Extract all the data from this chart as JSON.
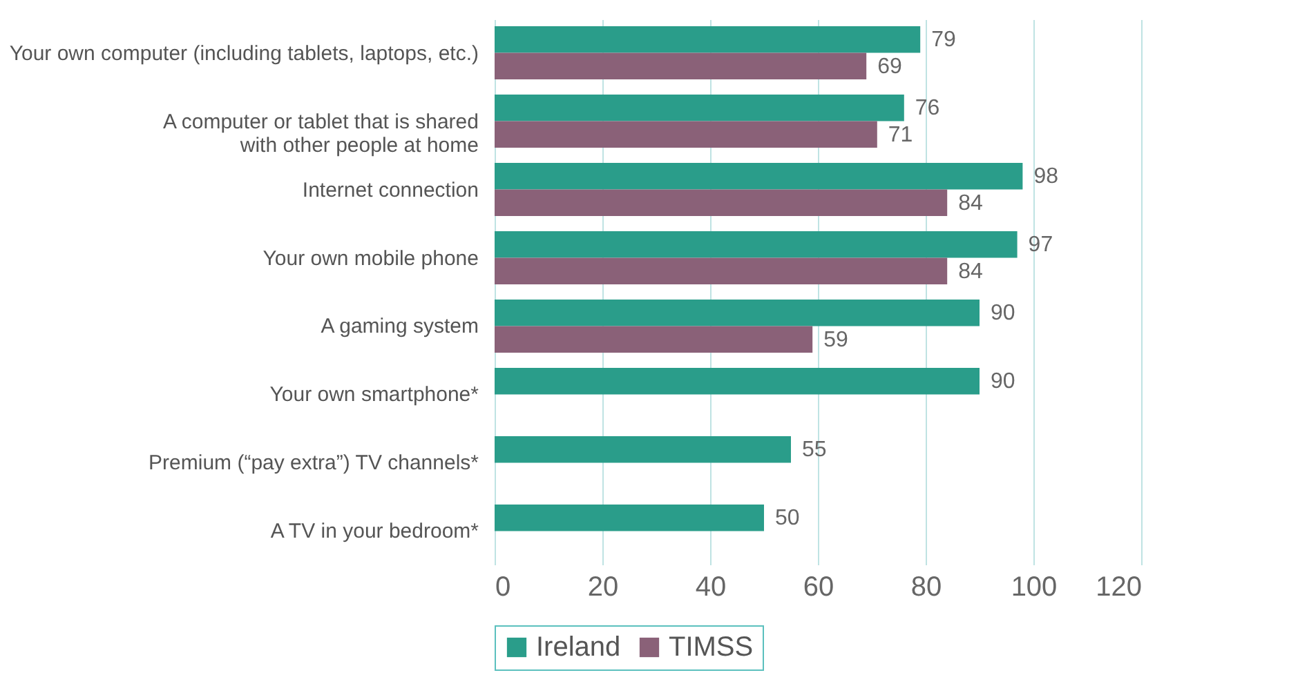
{
  "chart_data": {
    "type": "bar",
    "orientation": "horizontal",
    "categories": [
      "Your own computer (including tablets, laptops, etc.)",
      "A computer or tablet that is shared\nwith other people at home",
      "Internet connection",
      "Your own mobile phone",
      "A gaming system",
      "Your own smartphone*",
      "Premium (“pay extra”) TV channels*",
      "A TV in your bedroom*"
    ],
    "series": [
      {
        "name": "Ireland",
        "color": "#2a9d8a",
        "values": [
          79,
          76,
          98,
          97,
          90,
          90,
          55,
          50
        ]
      },
      {
        "name": "TIMSS",
        "color": "#8a6178",
        "values": [
          69,
          71,
          84,
          84,
          59,
          null,
          null,
          null
        ]
      }
    ],
    "xlim": [
      0,
      120
    ],
    "xticks": [
      0,
      20,
      40,
      60,
      80,
      100,
      120
    ],
    "grid": "x",
    "legend": "bottom",
    "data_labels": true
  }
}
